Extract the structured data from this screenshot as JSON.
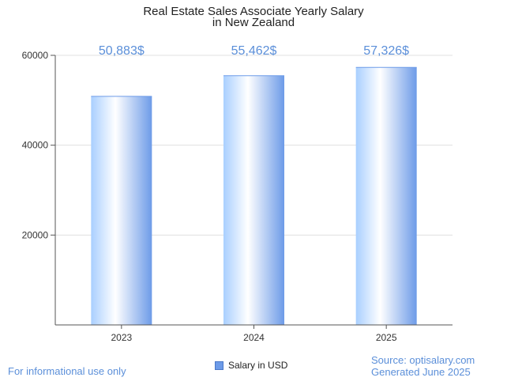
{
  "chart_data": {
    "type": "bar",
    "title": [
      "Real Estate Sales Associate Yearly Salary",
      "in New Zealand"
    ],
    "categories": [
      "2023",
      "2024",
      "2025"
    ],
    "series": [
      {
        "name": "Salary in USD",
        "values": [
          50883,
          55462,
          57326
        ]
      }
    ],
    "data_labels": [
      "50,883$",
      "55,462$",
      "57,326$"
    ],
    "yticks": [
      20000,
      40000,
      60000
    ],
    "ylim": [
      0,
      60000
    ],
    "xlabel": "",
    "ylabel": "",
    "grid": true,
    "legend": "bottom-center",
    "colors": {
      "bar_light": "#ffffff",
      "bar_mid": "#b3d7ff",
      "bar_dark": "#6d9be8",
      "label": "#5b8fd9",
      "grid": "#e0e0e0",
      "axis": "#555555"
    }
  },
  "footer": {
    "left": "For informational use only",
    "source": "Source: optisalary.com",
    "generated": "Generated June 2025"
  }
}
